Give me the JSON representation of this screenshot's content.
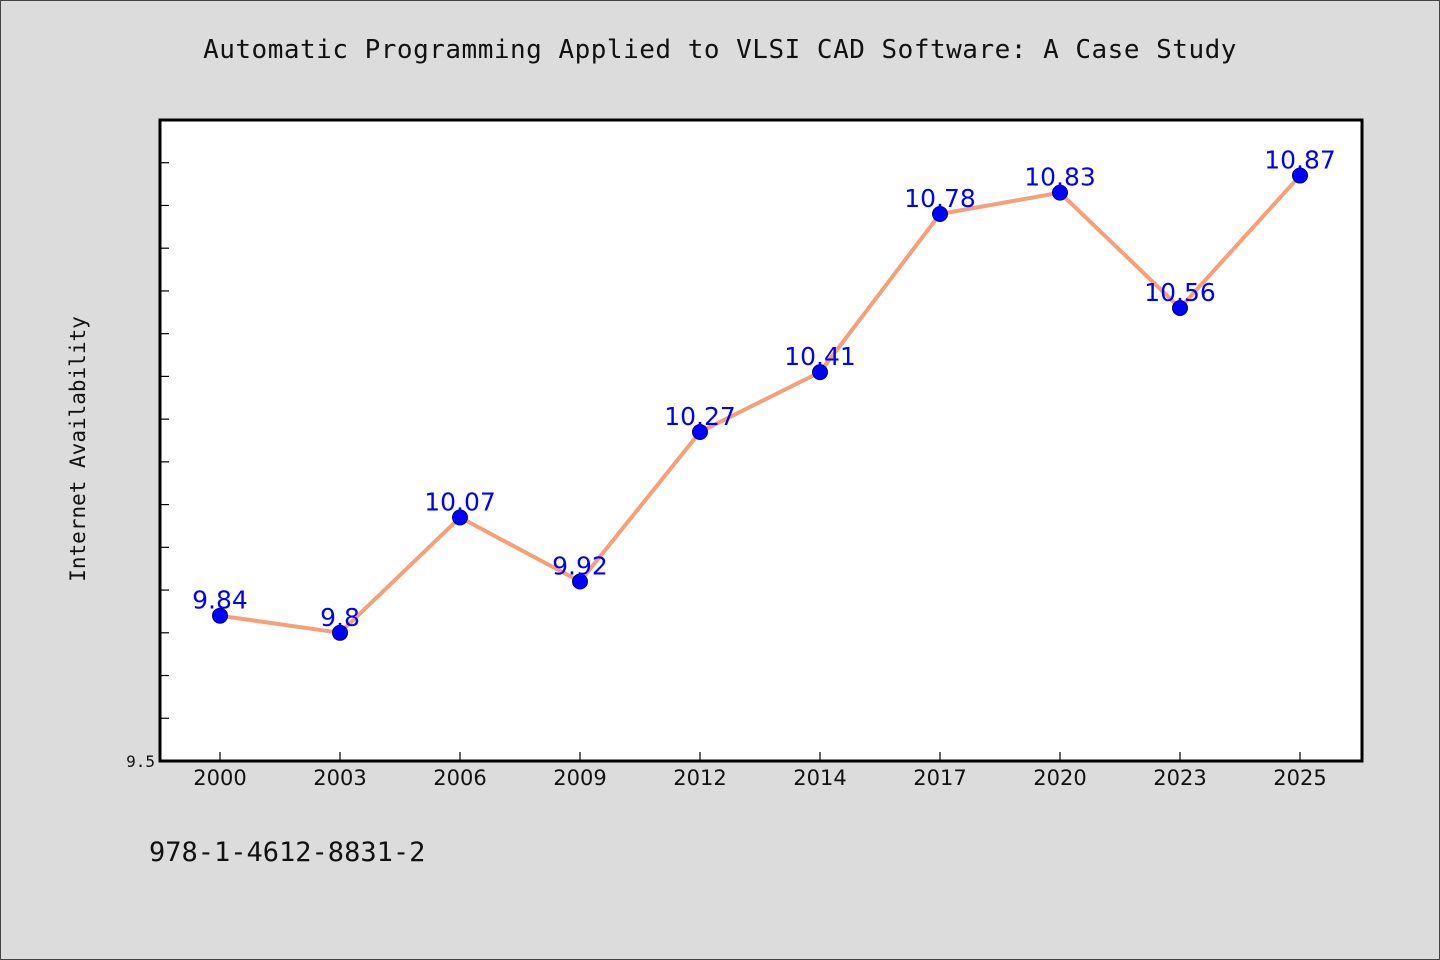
{
  "chart_data": {
    "type": "line",
    "title": "Automatic Programming Applied to VLSI CAD Software: A Case Study",
    "xlabel": "",
    "ylabel": "Internet Availability",
    "categories": [
      "2000",
      "2003",
      "2006",
      "2009",
      "2012",
      "2014",
      "2017",
      "2020",
      "2023",
      "2025"
    ],
    "series": [
      {
        "values": [
          9.84,
          9.8,
          10.07,
          9.92,
          10.27,
          10.41,
          10.78,
          10.83,
          10.56,
          10.87
        ]
      }
    ],
    "data_labels": [
      "9.84",
      "9.8",
      "10.07",
      "9.92",
      "10.27",
      "10.41",
      "10.78",
      "10.83",
      "10.56",
      "10.87"
    ],
    "ylim": [
      9.5,
      11.0
    ],
    "ytick_labels": [
      {
        "value": 9.5,
        "label": "9.5"
      }
    ],
    "ytick_step": 0.1,
    "grid": false,
    "legend": "none",
    "colors": {
      "line": "#f4a07a",
      "marker": "#0000ff",
      "label": "#0000ff",
      "plot_bg": "#ffffff",
      "figure_bg": "#dcdcdc"
    }
  },
  "footer": {
    "isbn": "978-1-4612-8831-2"
  }
}
